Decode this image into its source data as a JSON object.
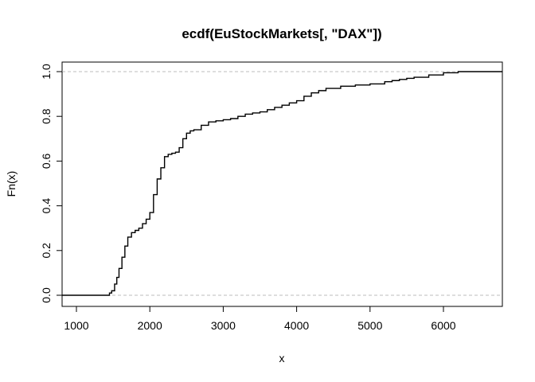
{
  "chart_data": {
    "type": "line",
    "title": "ecdf(EuStockMarkets[, \"DAX\"])",
    "xlabel": "x",
    "ylabel": "Fn(x)",
    "xlim": [
      800,
      6800
    ],
    "ylim": [
      0.0,
      1.0
    ],
    "x_ticks": [
      1000,
      2000,
      3000,
      4000,
      5000,
      6000
    ],
    "y_ticks": [
      0.0,
      0.2,
      0.4,
      0.6,
      0.8,
      1.0
    ],
    "x_tick_labels": [
      "1000",
      "2000",
      "3000",
      "4000",
      "5000",
      "6000"
    ],
    "y_tick_labels": [
      "0.0",
      "0.2",
      "0.4",
      "0.6",
      "0.8",
      "1.0"
    ],
    "reference_lines": [
      0.0,
      1.0
    ],
    "reference_line_color": "#bebebe",
    "line_color": "#000000",
    "grid": false,
    "series": [
      {
        "x": [
          800,
          1402,
          1450,
          1480,
          1520,
          1550,
          1580,
          1620,
          1660,
          1700,
          1750,
          1800,
          1850,
          1900,
          1950,
          2000,
          2050,
          2100,
          2150,
          2200,
          2250,
          2300,
          2350,
          2400,
          2450,
          2500,
          2550,
          2600,
          2700,
          2800,
          2900,
          3000,
          3100,
          3200,
          3300,
          3400,
          3500,
          3600,
          3700,
          3800,
          3900,
          4000,
          4100,
          4200,
          4300,
          4400,
          4600,
          4800,
          5000,
          5200,
          5300,
          5400,
          5500,
          5600,
          5800,
          6000,
          6200,
          6800
        ],
        "y": [
          0.0,
          0.0,
          0.01,
          0.02,
          0.05,
          0.08,
          0.12,
          0.17,
          0.22,
          0.26,
          0.28,
          0.29,
          0.3,
          0.32,
          0.34,
          0.37,
          0.45,
          0.52,
          0.57,
          0.62,
          0.63,
          0.635,
          0.64,
          0.66,
          0.7,
          0.725,
          0.735,
          0.74,
          0.76,
          0.775,
          0.78,
          0.785,
          0.79,
          0.8,
          0.81,
          0.815,
          0.82,
          0.83,
          0.84,
          0.85,
          0.86,
          0.87,
          0.89,
          0.905,
          0.915,
          0.925,
          0.935,
          0.94,
          0.945,
          0.955,
          0.96,
          0.965,
          0.97,
          0.975,
          0.985,
          0.995,
          1.0,
          1.0
        ]
      }
    ]
  }
}
